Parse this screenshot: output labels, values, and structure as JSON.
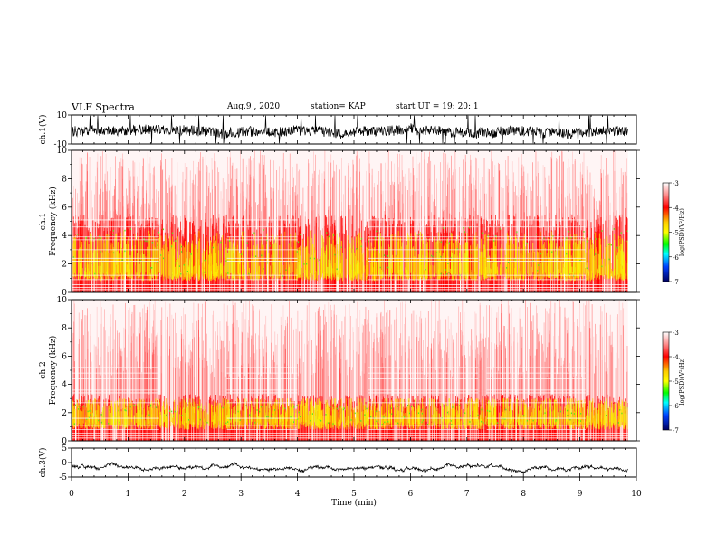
{
  "header": {
    "title": "VLF Spectra",
    "date": "Aug.9 , 2020",
    "station": "station= KAP",
    "start": "start UT = 19: 20: 1"
  },
  "colors": {
    "colormap": [
      "#ffffff",
      "#ff0000",
      "#ffff00",
      "#00ff00",
      "#00ffff",
      "#0000ff",
      "#000080"
    ],
    "trace": "#000000"
  },
  "chart_data": [
    {
      "type": "line",
      "panel": "ch1-waveform",
      "ylabel": "ch.1(V)",
      "ylim": [
        -10,
        10
      ],
      "yticks": [
        "10",
        "-10"
      ],
      "xlim": [
        0,
        10
      ],
      "note_values": "dense noisy waveform, amplitude mostly within ±7 V with bursts to ±10 V"
    },
    {
      "type": "heatmap",
      "panel": "ch1-spectrogram",
      "channel": "ch.1",
      "ylabel": "Frequency (kHz)",
      "ylim": [
        0,
        10
      ],
      "yticks": [
        "0",
        "2",
        "4",
        "6",
        "8",
        "10"
      ],
      "xlim": [
        0,
        10
      ],
      "colorbar": {
        "label": "log(PSD)(V²/Hz)",
        "range": [
          -7,
          -3
        ],
        "ticks": [
          "-3",
          "-4",
          "-5",
          "-6",
          "-7"
        ]
      },
      "strong_band_khz": [
        0.5,
        5.0
      ],
      "weak_segments_min": [
        [
          0,
          1.55
        ],
        [
          2.75,
          4.0
        ],
        [
          5.25,
          7.2
        ],
        [
          7.35,
          9.1
        ]
      ]
    },
    {
      "type": "heatmap",
      "panel": "ch2-spectrogram",
      "channel": "ch.2",
      "ylabel": "Frequency (kHz)",
      "ylim": [
        0,
        10
      ],
      "yticks": [
        "0",
        "2",
        "4",
        "6",
        "8",
        "10"
      ],
      "xlim": [
        0,
        10
      ],
      "colorbar": {
        "label": "log(PSD)(V²/Hz)",
        "range": [
          -7,
          -3
        ],
        "ticks": [
          "-3",
          "-4",
          "-5",
          "-6",
          "-7"
        ]
      },
      "strong_band_khz": [
        0.5,
        3.0
      ],
      "weak_segments_min": [
        [
          0,
          1.55
        ],
        [
          2.75,
          4.0
        ],
        [
          5.25,
          7.2
        ],
        [
          7.35,
          9.1
        ]
      ]
    },
    {
      "type": "line",
      "panel": "ch3-waveform",
      "ylabel": "ch.3(V)",
      "ylim": [
        -5,
        5
      ],
      "yticks": [
        "5",
        "0",
        "-5"
      ],
      "xlim": [
        0,
        10
      ],
      "xlabel": "Time (min)",
      "xticks": [
        "0",
        "1",
        "2",
        "3",
        "4",
        "5",
        "6",
        "7",
        "8",
        "9",
        "10"
      ],
      "note_values": "narrow trace near -1.5 V"
    }
  ]
}
